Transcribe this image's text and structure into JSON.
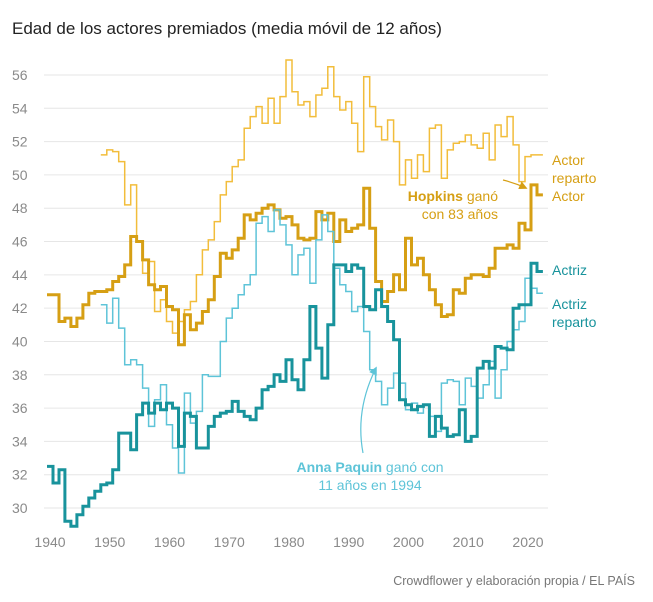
{
  "chart_data": {
    "type": "line",
    "title": "Edad de los actores premiados (media móvil de 12 años)",
    "xlabel": "",
    "ylabel": "",
    "xlim": [
      1939,
      2025
    ],
    "ylim": [
      28.5,
      57.5
    ],
    "x_ticks": [
      "1940",
      "1950",
      "1960",
      "1970",
      "1980",
      "1990",
      "2000",
      "2010",
      "2020"
    ],
    "y_ticks": [
      "30",
      "32",
      "34",
      "36",
      "38",
      "40",
      "42",
      "44",
      "46",
      "48",
      "50",
      "52",
      "54",
      "56"
    ],
    "step": true,
    "series": [
      {
        "name": "Actor reparto",
        "label": [
          "Actor",
          "reparto"
        ],
        "color": "#f2bd3b",
        "width": 1.5,
        "x": [
          1949,
          1950,
          1951,
          1952,
          1953,
          1954,
          1955,
          1956,
          1957,
          1958,
          1959,
          1960,
          1961,
          1962,
          1963,
          1964,
          1965,
          1966,
          1967,
          1968,
          1969,
          1970,
          1971,
          1972,
          1973,
          1974,
          1975,
          1976,
          1977,
          1978,
          1979,
          1980,
          1981,
          1982,
          1983,
          1984,
          1985,
          1986,
          1987,
          1988,
          1989,
          1990,
          1991,
          1992,
          1993,
          1994,
          1995,
          1996,
          1997,
          1998,
          1999,
          2000,
          2001,
          2002,
          2003,
          2004,
          2005,
          2006,
          2007,
          2008,
          2009,
          2010,
          2011,
          2012,
          2013,
          2014,
          2015,
          2016,
          2017,
          2018,
          2019,
          2020,
          2021,
          2022
        ],
        "y": [
          51.2,
          51.5,
          51.4,
          50.8,
          48.2,
          49.4,
          46.0,
          44.1,
          44.8,
          41.8,
          42.5,
          41.2,
          40.5,
          41.2,
          41.9,
          42.4,
          44.0,
          45.5,
          46.1,
          47.2,
          48.8,
          49.6,
          50.5,
          50.9,
          52.8,
          53.5,
          54.1,
          53.1,
          54.6,
          53.1,
          54.7,
          56.9,
          55.0,
          54.2,
          54.4,
          53.5,
          54.8,
          55.2,
          56.5,
          54.7,
          53.9,
          54.4,
          53.1,
          51.4,
          55.9,
          54.1,
          52.9,
          52.1,
          53.3,
          52.0,
          49.4,
          50.9,
          49.8,
          51.2,
          50.2,
          52.8,
          53.0,
          49.8,
          51.5,
          51.9,
          52.0,
          52.4,
          51.8,
          51.6,
          52.5,
          50.9,
          53.0,
          52.3,
          53.5,
          51.8,
          49.6,
          51.1,
          51.2,
          51.2
        ]
      },
      {
        "name": "Actor",
        "label": [
          "Actor"
        ],
        "color": "#d69f14",
        "width": 3,
        "x": [
          1940,
          1941,
          1942,
          1943,
          1944,
          1945,
          1946,
          1947,
          1948,
          1949,
          1950,
          1951,
          1952,
          1953,
          1954,
          1955,
          1956,
          1957,
          1958,
          1959,
          1960,
          1961,
          1962,
          1963,
          1964,
          1965,
          1966,
          1967,
          1968,
          1969,
          1970,
          1971,
          1972,
          1973,
          1974,
          1975,
          1976,
          1977,
          1978,
          1979,
          1980,
          1981,
          1982,
          1983,
          1984,
          1985,
          1986,
          1987,
          1988,
          1989,
          1990,
          1991,
          1992,
          1993,
          1994,
          1995,
          1996,
          1997,
          1998,
          1999,
          2000,
          2001,
          2002,
          2003,
          2004,
          2005,
          2006,
          2007,
          2008,
          2009,
          2010,
          2011,
          2012,
          2013,
          2014,
          2015,
          2016,
          2017,
          2018,
          2019,
          2020,
          2021,
          2022
        ],
        "y": [
          42.8,
          42.8,
          41.2,
          41.4,
          40.9,
          41.4,
          42.2,
          42.9,
          43.0,
          43.0,
          43.1,
          43.6,
          43.9,
          44.6,
          46.3,
          46.0,
          44.9,
          43.4,
          43.1,
          43.3,
          42.1,
          41.9,
          39.8,
          41.6,
          40.7,
          41.1,
          41.8,
          42.5,
          43.9,
          45.3,
          45.0,
          45.5,
          46.2,
          47.6,
          47.3,
          47.7,
          48.0,
          48.2,
          47.9,
          47.4,
          47.5,
          47.0,
          46.2,
          46.1,
          46.2,
          47.8,
          47.3,
          47.7,
          46.0,
          47.3,
          46.6,
          46.8,
          47.0,
          49.2,
          46.8,
          43.6,
          42.4,
          43.0,
          44.0,
          43.1,
          46.2,
          44.6,
          45.0,
          44.0,
          43.1,
          42.2,
          41.5,
          41.6,
          43.1,
          42.9,
          43.8,
          44.0,
          44.0,
          43.9,
          44.4,
          45.6,
          45.6,
          45.8,
          45.6,
          47.1,
          46.7,
          49.4,
          48.8
        ]
      },
      {
        "name": "Actriz reparto",
        "label": [
          "Actriz",
          "reparto"
        ],
        "color": "#5ec4d8",
        "width": 1.5,
        "x": [
          1949,
          1950,
          1951,
          1952,
          1953,
          1954,
          1955,
          1956,
          1957,
          1958,
          1959,
          1960,
          1961,
          1962,
          1963,
          1964,
          1965,
          1966,
          1967,
          1968,
          1969,
          1970,
          1971,
          1972,
          1973,
          1974,
          1975,
          1976,
          1977,
          1978,
          1979,
          1980,
          1981,
          1982,
          1983,
          1984,
          1985,
          1986,
          1987,
          1988,
          1989,
          1990,
          1991,
          1992,
          1993,
          1994,
          1995,
          1996,
          1997,
          1998,
          1999,
          2000,
          2001,
          2002,
          2003,
          2004,
          2005,
          2006,
          2007,
          2008,
          2009,
          2010,
          2011,
          2012,
          2013,
          2014,
          2015,
          2016,
          2017,
          2018,
          2019,
          2020,
          2021,
          2022
        ],
        "y": [
          42.2,
          41.1,
          42.6,
          40.8,
          38.6,
          38.9,
          38.6,
          37.2,
          34.9,
          36.5,
          37.4,
          35.0,
          33.6,
          32.1,
          36.9,
          35.1,
          35.8,
          38.0,
          37.9,
          37.9,
          40.0,
          41.4,
          42.0,
          42.8,
          43.4,
          44.0,
          47.1,
          47.5,
          46.6,
          47.9,
          47.0,
          45.8,
          44.0,
          45.2,
          45.6,
          43.5,
          46.1,
          47.6,
          46.6,
          44.4,
          43.4,
          43.0,
          41.8,
          42.1,
          40.6,
          38.3,
          37.6,
          36.2,
          37.2,
          38.1,
          37.5,
          35.9,
          36.3,
          35.7,
          36.2,
          35.5,
          34.6,
          37.5,
          37.7,
          37.6,
          36.2,
          37.8,
          37.3,
          36.6,
          37.4,
          38.8,
          36.6,
          38.3,
          40.0,
          40.7,
          41.2,
          43.8,
          43.2,
          42.9
        ]
      },
      {
        "name": "Actriz",
        "label": [
          "Actriz"
        ],
        "color": "#18939c",
        "width": 3,
        "x": [
          1940,
          1941,
          1942,
          1943,
          1944,
          1945,
          1946,
          1947,
          1948,
          1949,
          1950,
          1951,
          1952,
          1953,
          1954,
          1955,
          1956,
          1957,
          1958,
          1959,
          1960,
          1961,
          1962,
          1963,
          1964,
          1965,
          1966,
          1967,
          1968,
          1969,
          1970,
          1971,
          1972,
          1973,
          1974,
          1975,
          1976,
          1977,
          1978,
          1979,
          1980,
          1981,
          1982,
          1983,
          1984,
          1985,
          1986,
          1987,
          1988,
          1989,
          1990,
          1991,
          1992,
          1993,
          1994,
          1995,
          1996,
          1997,
          1998,
          1999,
          2000,
          2001,
          2002,
          2003,
          2004,
          2005,
          2006,
          2007,
          2008,
          2009,
          2010,
          2011,
          2012,
          2013,
          2014,
          2015,
          2016,
          2017,
          2018,
          2019,
          2020,
          2021,
          2022
        ],
        "y": [
          32.5,
          31.5,
          32.3,
          29.2,
          28.9,
          29.6,
          30.1,
          30.6,
          31.0,
          31.4,
          31.5,
          32.3,
          34.5,
          34.5,
          33.5,
          35.6,
          36.3,
          35.7,
          36.3,
          35.9,
          36.3,
          36.0,
          33.7,
          35.7,
          35.5,
          33.6,
          33.6,
          34.9,
          35.5,
          35.7,
          35.8,
          36.4,
          35.8,
          35.5,
          35.3,
          36.0,
          37.1,
          37.3,
          38.0,
          37.6,
          38.9,
          37.7,
          37.1,
          38.9,
          42.1,
          39.6,
          37.8,
          41.0,
          44.6,
          44.6,
          44.2,
          44.6,
          44.4,
          42.1,
          41.9,
          43.1,
          42.1,
          41.2,
          40.1,
          36.5,
          36.2,
          35.9,
          36.1,
          36.2,
          34.3,
          35.5,
          34.8,
          34.3,
          34.4,
          35.9,
          34.0,
          34.3,
          38.4,
          38.8,
          38.4,
          39.7,
          39.6,
          39.5,
          42.0,
          42.2,
          42.2,
          44.7,
          44.2
        ]
      }
    ],
    "annotations": [
      {
        "name": "hopkins",
        "color": "#d69f14",
        "bold": "Hopkins",
        "rest": " ganó",
        "line2": "con 83 años"
      },
      {
        "name": "paquin",
        "color": "#5ec4d8",
        "bold": "Anna Paquin",
        "rest": " ganó con",
        "line2": "11 años en 1994"
      }
    ],
    "source": "Crowdflower y elaboración propia / EL PAÍS"
  }
}
